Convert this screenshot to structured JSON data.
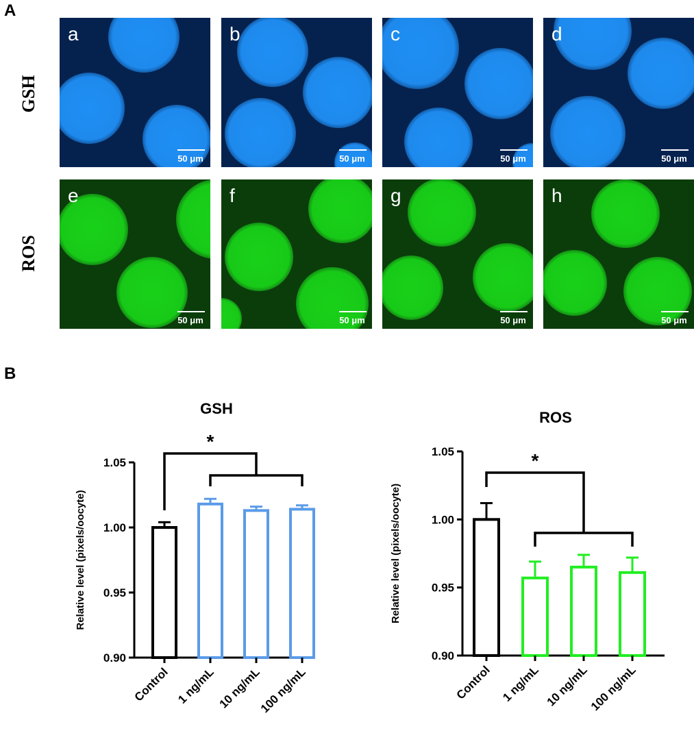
{
  "figure": {
    "panel_a_label": "A",
    "panel_b_label": "B",
    "row_labels": [
      "GSH",
      "ROS"
    ],
    "scale_text": "50 μm",
    "tiles": [
      {
        "letter": "a",
        "stain": "GSH"
      },
      {
        "letter": "b",
        "stain": "GSH"
      },
      {
        "letter": "c",
        "stain": "GSH"
      },
      {
        "letter": "d",
        "stain": "GSH"
      },
      {
        "letter": "e",
        "stain": "ROS"
      },
      {
        "letter": "f",
        "stain": "ROS"
      },
      {
        "letter": "g",
        "stain": "ROS"
      },
      {
        "letter": "h",
        "stain": "ROS"
      }
    ],
    "colors": {
      "gsh_background": "#05224f",
      "gsh_oocyte": "#1f8ff5",
      "ros_background": "#0b3d0b",
      "ros_oocyte": "#19d119"
    }
  },
  "chart_data": [
    {
      "type": "bar",
      "title": "GSH",
      "ylabel": "Relative level (pixels/oocyte)",
      "xlabel": "",
      "categories": [
        "Control",
        "1 ng/mL",
        "10 ng/mL",
        "100 ng/mL"
      ],
      "values": [
        1.0,
        1.018,
        1.013,
        1.014
      ],
      "errors": [
        0.004,
        0.004,
        0.003,
        0.003
      ],
      "bar_colors": [
        "#000000",
        "#5a9be8",
        "#5a9be8",
        "#5a9be8"
      ],
      "ylim": [
        0.9,
        1.05
      ],
      "yticks": [
        "0.90",
        "0.95",
        "1.00",
        "1.05"
      ],
      "grid": false,
      "significance": "*"
    },
    {
      "type": "bar",
      "title": "ROS",
      "ylabel": "Relative level (pixels/oocyte)",
      "xlabel": "",
      "categories": [
        "Control",
        "1 ng/mL",
        "10 ng/mL",
        "100 ng/mL"
      ],
      "values": [
        1.0,
        0.957,
        0.965,
        0.961
      ],
      "errors": [
        0.012,
        0.012,
        0.009,
        0.011
      ],
      "bar_colors": [
        "#000000",
        "#22ee22",
        "#22ee22",
        "#22ee22"
      ],
      "ylim": [
        0.9,
        1.05
      ],
      "yticks": [
        "0.90",
        "0.95",
        "1.00",
        "1.05"
      ],
      "grid": false,
      "significance": "*"
    }
  ]
}
